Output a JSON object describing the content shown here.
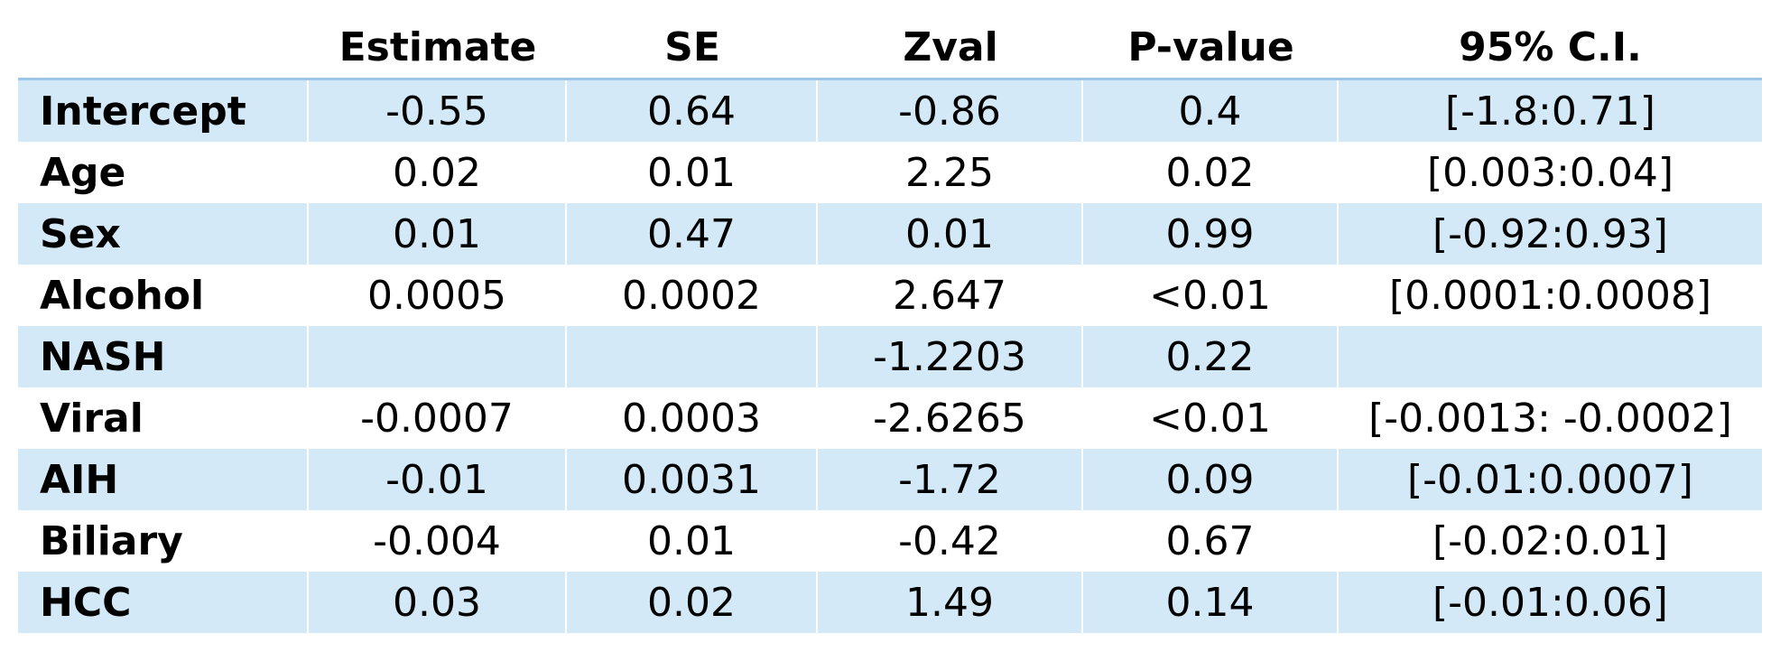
{
  "table": {
    "headers": [
      "",
      "Estimate",
      "SE",
      "Zval",
      "P-value",
      "95% C.I."
    ],
    "rows": [
      {
        "label": "Intercept",
        "estimate": "-0.55",
        "se": "0.64",
        "zval": "-0.86",
        "pvalue": "0.4",
        "ci": "[-1.8:0.71]"
      },
      {
        "label": "Age",
        "estimate": "0.02",
        "se": "0.01",
        "zval": "2.25",
        "pvalue": "0.02",
        "ci": "[0.003:0.04]"
      },
      {
        "label": "Sex",
        "estimate": "0.01",
        "se": "0.47",
        "zval": "0.01",
        "pvalue": "0.99",
        "ci": "[-0.92:0.93]"
      },
      {
        "label": "Alcohol",
        "estimate": "0.0005",
        "se": "0.0002",
        "zval": "2.647",
        "pvalue": "<0.01",
        "ci": "[0.0001:0.0008]"
      },
      {
        "label": "NASH",
        "estimate": "",
        "se": "",
        "zval": "-1.2203",
        "pvalue": "0.22",
        "ci": ""
      },
      {
        "label": "Viral",
        "estimate": "-0.0007",
        "se": "0.0003",
        "zval": "-2.6265",
        "pvalue": "<0.01",
        "ci": "[-0.0013: -0.0002]"
      },
      {
        "label": "AIH",
        "estimate": "-0.01",
        "se": "0.0031",
        "zval": "-1.72",
        "pvalue": "0.09",
        "ci": "[-0.01:0.0007]"
      },
      {
        "label": "Biliary",
        "estimate": "-0.004",
        "se": "0.01",
        "zval": "-0.42",
        "pvalue": "0.67",
        "ci": "[-0.02:0.01]"
      },
      {
        "label": "HCC",
        "estimate": "0.03",
        "se": "0.02",
        "zval": "1.49",
        "pvalue": "0.14",
        "ci": "[-0.01:0.06]"
      }
    ]
  },
  "colors": {
    "band": "#d3e9f7",
    "header_rule": "#9dc6e8"
  }
}
